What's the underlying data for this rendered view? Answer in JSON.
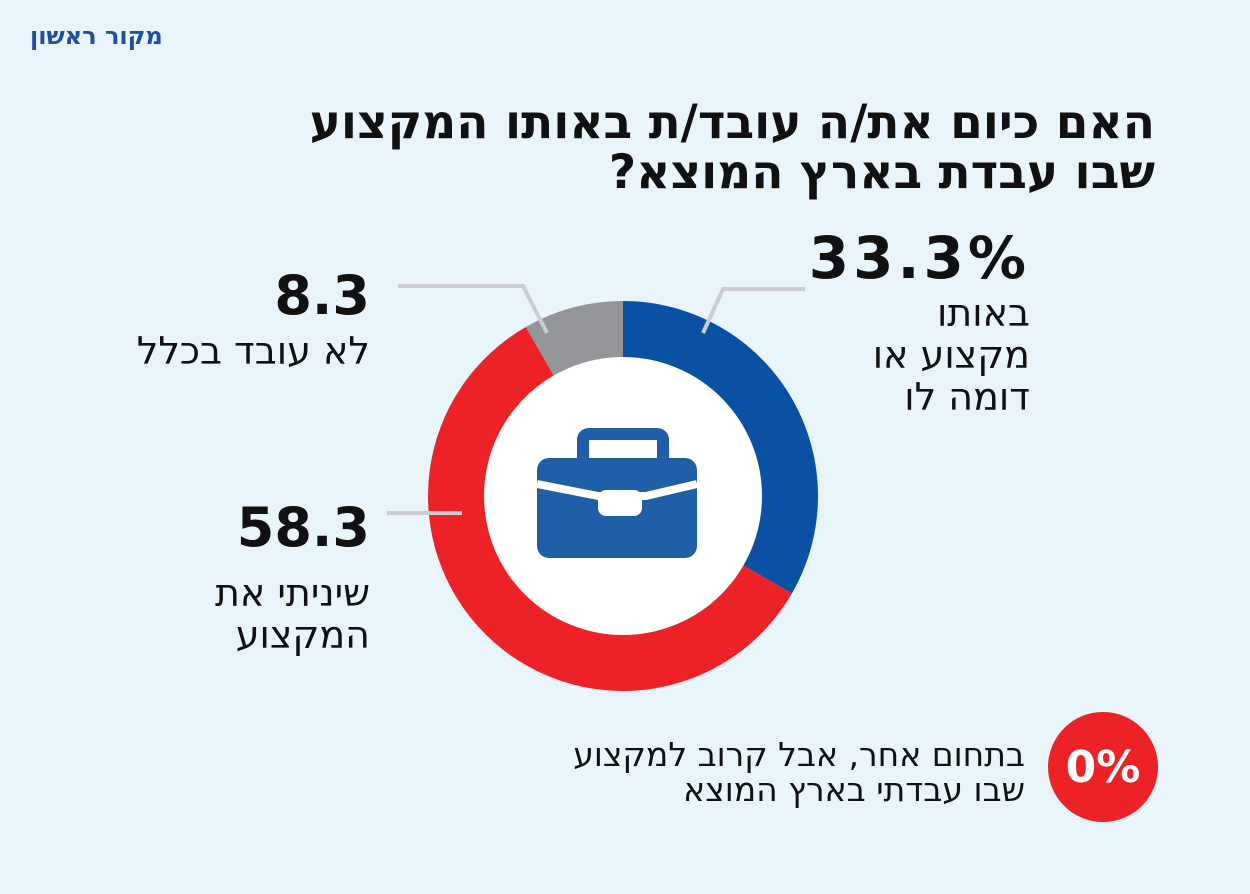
{
  "brand": "מקור ראשון",
  "title": {
    "line1": "האם כיום את/ה עובד/ת באותו המקצוע",
    "line2": "שבו עבדת בארץ המוצא?"
  },
  "icon": "briefcase-icon",
  "colors": {
    "background": "#e9f5fb",
    "blue": "#0a51a3",
    "red": "#ec2227",
    "gray": "#939598",
    "leader": "#c9cdd0"
  },
  "chart_data": {
    "type": "pie",
    "donut": true,
    "slices": [
      {
        "value": 33.3,
        "value_label": "33.3%",
        "label_lines": [
          "באותו",
          "מקצוע או",
          "דומה לו"
        ],
        "color": "#0a51a3"
      },
      {
        "value": 58.3,
        "value_label": "58.3",
        "label_lines": [
          "שיניתי את",
          "המקצוע"
        ],
        "color": "#ec2227"
      },
      {
        "value": 8.3,
        "value_label": "8.3",
        "label_lines": [
          "לא עובד בכלל"
        ],
        "color": "#939598"
      },
      {
        "value": 0,
        "value_label": "0%",
        "label_lines": [
          "בתחום אחר, אבל קרוב למקצוע",
          "שבו עבדתי בארץ המוצא"
        ],
        "color": "#ec2227"
      }
    ]
  }
}
